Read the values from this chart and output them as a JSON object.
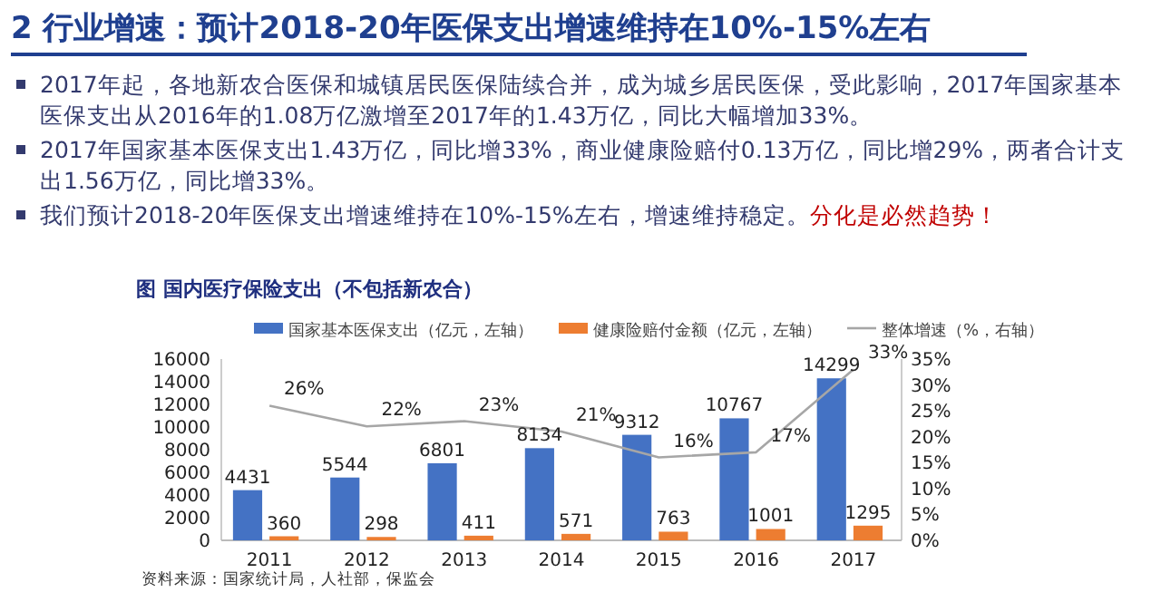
{
  "chart_data": {
    "type": "bar",
    "title": "2 行业增速：预计2018-20年医保支出增速维持在10%-15%左右",
    "subtitle": "图 国内医疗保险支出（不包括新农合）",
    "annotations": [
      "2017年起，各地新农合医保和城镇居民医保陆续合并，成为城乡居民医保，受此影响，2017年国家基本医保支出从2016年的1.08万亿激增至2017年的1.43万亿，同比大幅增加33%。",
      "2017年国家基本医保支出1.43万亿，同比增33%，商业健康险赔付0.13万亿，同比增29%，两者合计支出1.56万亿，同比增33%。",
      "我们预计2018-20年医保支出增速维持在10%-15%左右，增速维持稳定。",
      "分化是必然趋势！",
      "资料来源：国家统计局，人社部，保监会"
    ],
    "categories": [
      "2011",
      "2012",
      "2013",
      "2014",
      "2015",
      "2016",
      "2017"
    ],
    "series": [
      {
        "name": "国家基本医保支出（亿元，左轴）",
        "color": "#4472c4",
        "values": [
          4431,
          5544,
          6801,
          8134,
          9312,
          10767,
          14299
        ],
        "value_labels": [
          "4431",
          "5544",
          "6801",
          "8134",
          "9312",
          "10767",
          "14299"
        ]
      },
      {
        "name": "健康险赔付金额（亿元，左轴）",
        "color": "#ed7d31",
        "values": [
          360,
          298,
          411,
          571,
          763,
          1001,
          1295
        ],
        "value_labels": [
          "360",
          "298",
          "411",
          "571",
          "763",
          "1001",
          "1295"
        ]
      },
      {
        "name": "整体增速（%，右轴）",
        "type": "line",
        "axis": "y2",
        "color": "#a6a6a6",
        "values": [
          26,
          22,
          23,
          21,
          16,
          17,
          33
        ],
        "value_labels": [
          "26%",
          "22%",
          "23%",
          "21%",
          "16%",
          "17%",
          "33%"
        ]
      }
    ],
    "ylim": [
      0,
      16000
    ],
    "yticks": [
      0,
      2000,
      4000,
      6000,
      8000,
      10000,
      12000,
      14000,
      16000
    ],
    "y2lim": [
      0,
      35
    ],
    "y2ticks": [
      {
        "value": 0,
        "label": "0%"
      },
      {
        "value": 5,
        "label": "5%"
      },
      {
        "value": 10,
        "label": "10%"
      },
      {
        "value": 15,
        "label": "15%"
      },
      {
        "value": 20,
        "label": "20%"
      },
      {
        "value": 25,
        "label": "25%"
      },
      {
        "value": 30,
        "label": "30%"
      },
      {
        "value": 35,
        "label": "35%"
      }
    ],
    "grid": false,
    "legend": "top",
    "marker": "none",
    "line_style": "solid"
  }
}
